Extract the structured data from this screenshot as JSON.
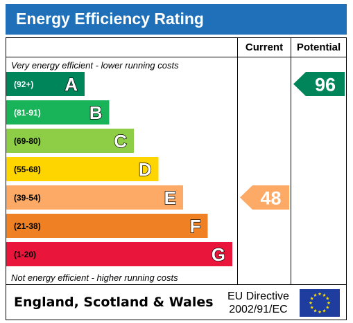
{
  "title": "Energy Efficiency Rating",
  "columns": {
    "current": "Current",
    "potential": "Potential"
  },
  "notes": {
    "top": "Very energy efficient - lower running costs",
    "bottom": "Not energy efficient - higher running costs"
  },
  "footer": {
    "country": "England, Scotland & Wales",
    "directive_line1": "EU Directive",
    "directive_line2": "2002/91/EC",
    "flag": "eu-flag-icon"
  },
  "chart_data": {
    "type": "bar",
    "title": "Energy Efficiency Rating",
    "categories": [
      "A",
      "B",
      "C",
      "D",
      "E",
      "F",
      "G"
    ],
    "ranges": [
      "(92+)",
      "(81-91)",
      "(69-80)",
      "(55-68)",
      "(39-54)",
      "(21-38)",
      "(1-20)"
    ],
    "colors": [
      "#00855a",
      "#19b459",
      "#8dce46",
      "#ffd500",
      "#fcaa65",
      "#ef8023",
      "#e9153b"
    ],
    "range_text_colors": [
      "#ffffff",
      "#ffffff",
      "#000000",
      "#000000",
      "#000000",
      "#000000",
      "#000000"
    ],
    "current": {
      "value": 48,
      "band": "E",
      "color": "#fcaa65"
    },
    "potential": {
      "value": 96,
      "band": "A",
      "color": "#00855a"
    }
  }
}
